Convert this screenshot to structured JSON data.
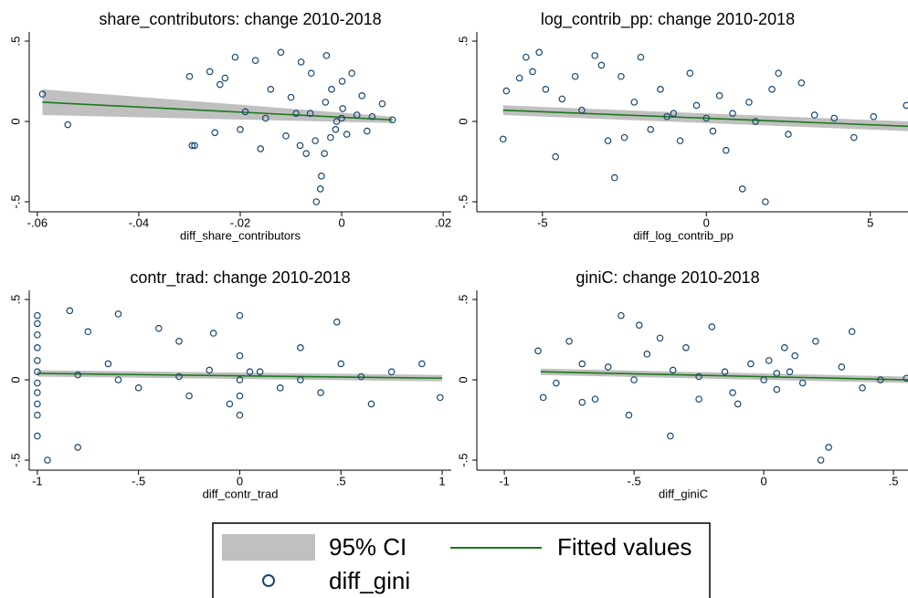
{
  "chart_data": [
    {
      "type": "scatter",
      "title": "share_contributors: change 2010-2018",
      "xlabel": "diff_share_contributors",
      "xlim": [
        -0.0616,
        0.0216
      ],
      "ylim": [
        -0.5625,
        0.557
      ],
      "xticks": [
        {
          "value": -0.06,
          "label": "-.06"
        },
        {
          "value": -0.04,
          "label": "-.04"
        },
        {
          "value": -0.02,
          "label": "-.02"
        },
        0,
        {
          "value": 0.02,
          "label": ".02"
        }
      ],
      "yticks": [
        {
          "value": -0.5,
          "label": "-.5"
        },
        0,
        {
          "value": 0.5,
          "label": ".5"
        }
      ],
      "series": [
        {
          "name": "95% CI",
          "color": "#c0c0c0",
          "x": [
            -0.059,
            0.01
          ],
          "lower": [
            0.04,
            -0.01
          ],
          "upper": [
            0.2,
            0.03
          ]
        },
        {
          "name": "Fitted values",
          "color": "#1a7a1a",
          "x": [
            -0.059,
            0.01
          ],
          "values": [
            0.12,
            0.01
          ]
        },
        {
          "name": "diff_gini",
          "color": "#1a476f",
          "x": [
            -0.059,
            -0.054,
            -0.03,
            -0.029,
            -0.0295,
            -0.026,
            -0.024,
            -0.023,
            -0.021,
            -0.019,
            -0.017,
            -0.016,
            -0.014,
            -0.012,
            -0.011,
            -0.01,
            -0.009,
            -0.008,
            -0.007,
            -0.006,
            -0.005,
            -0.004,
            -0.0042,
            -0.003,
            -0.002,
            -0.001,
            0,
            -0.0012,
            0.0002,
            -0.0022,
            -0.0032,
            0.001,
            0.002,
            0.003,
            0.004,
            0.005,
            0.006,
            0.008,
            0.01,
            -0.0062,
            -0.0052,
            -0.015,
            -0.02,
            -0.0082,
            -0.0034,
            0.0001,
            -0.025
          ],
          "values": [
            0.17,
            -0.02,
            0.28,
            -0.15,
            -0.15,
            0.31,
            0.23,
            0.27,
            0.4,
            0.06,
            0.38,
            -0.17,
            0.2,
            0.43,
            -0.09,
            0.15,
            0.05,
            0.37,
            -0.2,
            0.3,
            -0.5,
            -0.34,
            -0.42,
            0.41,
            0.2,
            0,
            0.02,
            -0.05,
            0.08,
            -0.1,
            0.12,
            -0.08,
            0.3,
            0.04,
            0.16,
            -0.06,
            0.03,
            0.11,
            0.01,
            0.05,
            -0.12,
            0.02,
            -0.05,
            -0.15,
            -0.2,
            0.25,
            -0.07
          ]
        }
      ]
    },
    {
      "type": "scatter",
      "title": "log_contrib_pp: change 2010-2018",
      "xlabel": "diff_log_contrib_pp",
      "xlim": [
        -7.0,
        6.15
      ],
      "ylim": [
        -0.5625,
        0.557
      ],
      "xticks": [
        -5,
        0,
        5
      ],
      "yticks": [
        {
          "value": -0.5,
          "label": "-.5"
        },
        0,
        {
          "value": 0.5,
          "label": ".5"
        }
      ],
      "series": [
        {
          "name": "95% CI",
          "color": "#c0c0c0",
          "x": [
            -6.2,
            6.15
          ],
          "lower": [
            0.04,
            -0.06
          ],
          "upper": [
            0.1,
            0
          ]
        },
        {
          "name": "Fitted values",
          "color": "#1a7a1a",
          "x": [
            -6.2,
            6.15
          ],
          "values": [
            0.07,
            -0.03
          ]
        },
        {
          "name": "diff_gini",
          "color": "#1a476f",
          "x": [
            -6.2,
            -6.1,
            -5.7,
            -5.5,
            -5.3,
            -5.1,
            -4.9,
            -4.6,
            -4.4,
            -4,
            -3.8,
            -3.4,
            -3.2,
            -3,
            -2.8,
            -2.6,
            -2.2,
            -2,
            -1.7,
            -1.4,
            -1.2,
            -0.8,
            -0.5,
            -0.3,
            0,
            0.2,
            0.4,
            0.6,
            1.1,
            1.5,
            1.8,
            2.2,
            2,
            2.5,
            2.9,
            3.3,
            3.9,
            4.5,
            5.1,
            6.1,
            -1,
            0.8,
            -2.5,
            1.3
          ],
          "values": [
            -0.11,
            0.19,
            0.27,
            0.4,
            0.31,
            0.43,
            0.2,
            -0.22,
            0.14,
            0.28,
            0.07,
            0.41,
            0.35,
            -0.12,
            -0.35,
            0.28,
            0.12,
            0.4,
            -0.05,
            0.2,
            0.03,
            -0.12,
            0.3,
            0.1,
            0.02,
            -0.06,
            0.16,
            -0.18,
            -0.42,
            0,
            -0.5,
            0.3,
            0.2,
            -0.08,
            0.24,
            0.04,
            0.02,
            -0.1,
            0.03,
            0.1,
            0.05,
            0.05,
            -0.1,
            0.12
          ]
        }
      ]
    },
    {
      "type": "scatter",
      "title": "contr_trad: change 2010-2018",
      "xlabel": "diff_contr_trad",
      "xlim": [
        -1.04,
        1.045
      ],
      "ylim": [
        -0.5625,
        0.557
      ],
      "xticks": [
        -1,
        {
          "value": -0.5,
          "label": "-.5"
        },
        0,
        {
          "value": 0.5,
          "label": ".5"
        },
        1
      ],
      "yticks": [
        {
          "value": -0.5,
          "label": "-.5"
        },
        0,
        {
          "value": 0.5,
          "label": ".5"
        }
      ],
      "series": [
        {
          "name": "95% CI",
          "color": "#c0c0c0",
          "x": [
            -1,
            1
          ],
          "lower": [
            0.02,
            -0.01
          ],
          "upper": [
            0.06,
            0.03
          ]
        },
        {
          "name": "Fitted values",
          "color": "#1a7a1a",
          "x": [
            -1,
            1
          ],
          "values": [
            0.04,
            0.01
          ]
        },
        {
          "name": "diff_gini",
          "color": "#1a476f",
          "x": [
            -1,
            -1,
            -1,
            -1,
            -1,
            -1,
            -1,
            -1,
            -1,
            -1,
            -1,
            -0.95,
            -0.84,
            -0.8,
            -0.75,
            -0.65,
            -0.6,
            -0.5,
            -0.4,
            -0.3,
            -0.25,
            -0.15,
            -0.13,
            -0.05,
            0,
            0,
            0,
            0,
            0,
            0.05,
            0.1,
            0.2,
            0.3,
            0.4,
            0.48,
            0.5,
            0.65,
            0.75,
            0.9,
            0.99,
            -0.8,
            -0.6,
            -0.3,
            0.3,
            0.6
          ],
          "values": [
            0.4,
            0.35,
            0.28,
            0.2,
            0.12,
            0.05,
            -0.02,
            -0.08,
            -0.15,
            -0.22,
            -0.35,
            -0.5,
            0.43,
            -0.42,
            0.3,
            0.1,
            0.41,
            -0.05,
            0.32,
            0.24,
            -0.1,
            0.06,
            0.29,
            -0.15,
            0.4,
            0.15,
            0,
            -0.1,
            -0.22,
            0.05,
            0.05,
            -0.05,
            0.2,
            -0.08,
            0.36,
            0.1,
            -0.15,
            0.05,
            0.1,
            -0.11,
            0.03,
            0,
            0.02,
            0,
            0.02
          ]
        }
      ]
    },
    {
      "type": "scatter",
      "title": "giniC: change 2010-2018",
      "xlabel": "diff_giniC",
      "xlim": [
        -1.106,
        0.556
      ],
      "ylim": [
        -0.5625,
        0.557
      ],
      "xticks": [
        -1,
        {
          "value": -0.5,
          "label": "-.5"
        },
        0,
        {
          "value": 0.5,
          "label": ".5"
        }
      ],
      "yticks": [
        {
          "value": -0.5,
          "label": "-.5"
        },
        0,
        {
          "value": 0.5,
          "label": ".5"
        }
      ],
      "series": [
        {
          "name": "95% CI",
          "color": "#c0c0c0",
          "x": [
            -0.86,
            0.556
          ],
          "lower": [
            0.03,
            -0.02
          ],
          "upper": [
            0.07,
            0.02
          ]
        },
        {
          "name": "Fitted values",
          "color": "#1a7a1a",
          "x": [
            -0.86,
            0.556
          ],
          "values": [
            0.05,
            0
          ]
        },
        {
          "name": "diff_gini",
          "color": "#1a476f",
          "x": [
            -0.87,
            -0.85,
            -0.8,
            -0.75,
            -0.7,
            -0.65,
            -0.6,
            -0.55,
            -0.52,
            -0.48,
            -0.45,
            -0.4,
            -0.36,
            -0.35,
            -0.3,
            -0.25,
            -0.2,
            -0.15,
            -0.1,
            -0.05,
            0,
            0.02,
            0.05,
            0.08,
            0.1,
            0.15,
            0.2,
            0.22,
            0.25,
            0.3,
            0.34,
            0.38,
            0.45,
            0.55,
            -0.7,
            -0.5,
            -0.25,
            0.05,
            -0.12,
            0.12
          ],
          "values": [
            0.18,
            -0.11,
            -0.02,
            0.24,
            0.1,
            -0.12,
            0.08,
            0.4,
            -0.22,
            0.34,
            0.16,
            0.26,
            -0.35,
            0.06,
            0.2,
            -0.12,
            0.33,
            0.05,
            -0.15,
            0.1,
            0,
            0.12,
            -0.06,
            0.2,
            0.05,
            -0.02,
            0.24,
            -0.5,
            -0.42,
            0.08,
            0.3,
            -0.05,
            0,
            0.01,
            -0.14,
            0,
            0.02,
            0.04,
            -0.08,
            0.15
          ]
        }
      ]
    }
  ]
}
